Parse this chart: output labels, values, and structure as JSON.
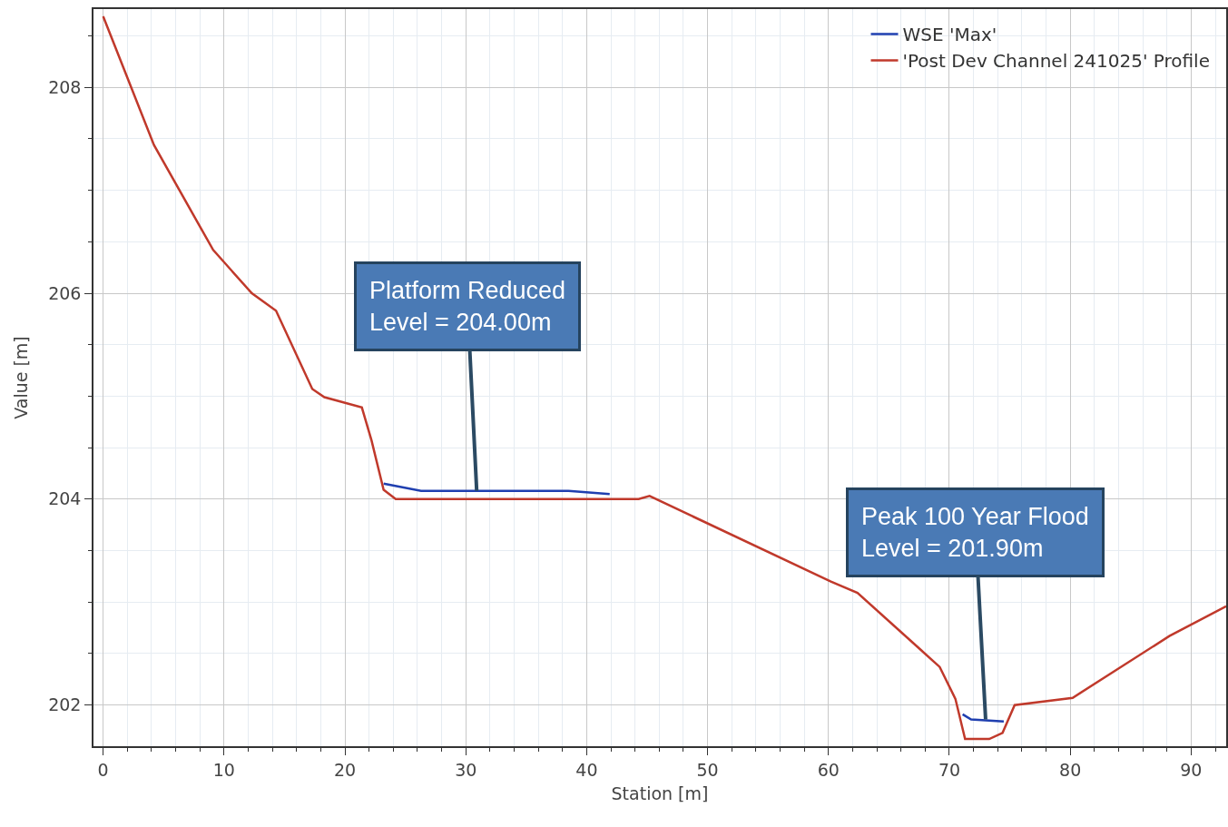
{
  "chart_data": {
    "type": "line",
    "xlabel": "Station [m]",
    "ylabel": "Value [m]",
    "series": [
      {
        "name": "WSE 'Max'",
        "color": "#1f3fb0",
        "x": [
          23.2,
          26.3,
          38.5,
          41.9,
          56,
          71.1,
          71.8,
          74.5
        ],
        "values": [
          204.15,
          204.08,
          204.08,
          204.05,
          null,
          201.91,
          201.86,
          201.84
        ]
      },
      {
        "name": "'Post Dev Channel 241025' Profile",
        "color": "#c0392b",
        "x": [
          0,
          4.2,
          9.1,
          12.3,
          14.3,
          17.3,
          18.3,
          21.4,
          22.2,
          23.2,
          24.2,
          44.3,
          45.2,
          60.2,
          62.4,
          69.2,
          70.5,
          71.3,
          73.3,
          74.4,
          75.4,
          80.2,
          88.2,
          92.9
        ],
        "values": [
          208.69,
          207.44,
          206.42,
          206.0,
          205.83,
          205.07,
          204.99,
          204.89,
          204.57,
          204.09,
          204.0,
          204.0,
          204.03,
          203.2,
          203.09,
          202.37,
          202.06,
          201.67,
          201.67,
          201.73,
          202.0,
          202.07,
          202.67,
          202.96
        ]
      }
    ],
    "xlim": [
      -0.8,
      92.9
    ],
    "ylim": [
      201.6,
      208.76
    ],
    "xticks": [
      0,
      10,
      20,
      30,
      40,
      50,
      60,
      70,
      80,
      90
    ],
    "yticks": [
      202,
      204,
      206,
      208
    ],
    "grid": true,
    "legend": "top right",
    "line_style": "solid",
    "marker": "none",
    "annotations": [
      {
        "text": "Platform Reduced\nLevel = 204.00m",
        "x": 30.9,
        "y": 204.08
      },
      {
        "text": "Peak 100 Year Flood\nLevel = 201.90m",
        "x": 73.0,
        "y": 201.86
      }
    ]
  }
}
